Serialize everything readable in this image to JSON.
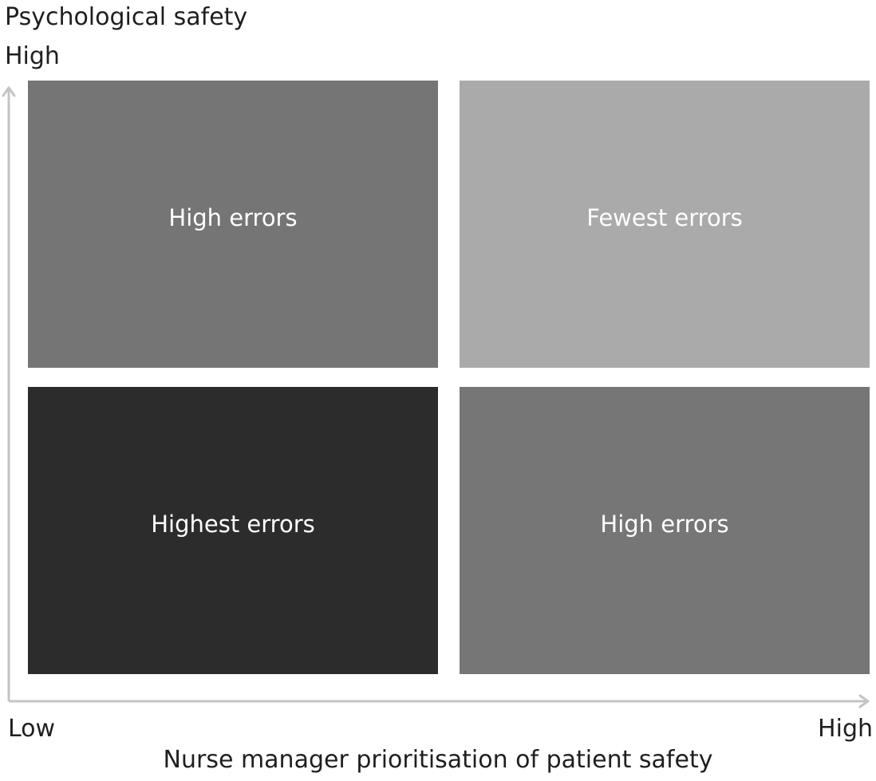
{
  "y_axis": {
    "title": "Psychological safety",
    "high_label": "High"
  },
  "x_axis": {
    "title": "Nurse manager prioritisation of patient safety",
    "low_label": "Low",
    "high_label": "High"
  },
  "quadrants": {
    "top_left": {
      "label": "High errors",
      "color": "#757575"
    },
    "top_right": {
      "label": "Fewest errors",
      "color": "#aaaaaa"
    },
    "bottom_left": {
      "label": "Highest errors",
      "color": "#2c2c2c"
    },
    "bottom_right": {
      "label": "High errors",
      "color": "#767676"
    }
  },
  "colors": {
    "axis_line": "#c4c4c4",
    "text": "#1f1f1f",
    "quadrant_text": "#ffffff"
  }
}
